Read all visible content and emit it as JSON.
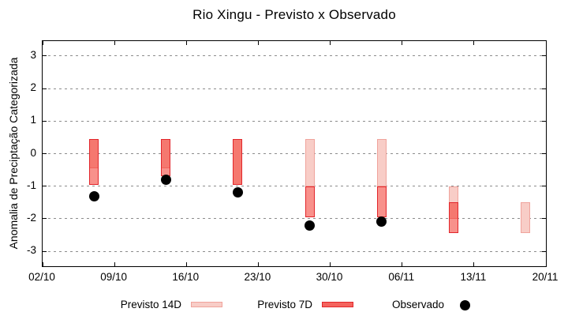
{
  "chart_data": {
    "type": "bar",
    "title": "Rio Xingu - Previsto x Observado",
    "ylabel": "Anomalia de Preciptação Categorizada",
    "x_axis": {
      "tick_labels": [
        "02/10",
        "09/10",
        "16/10",
        "23/10",
        "30/10",
        "06/11",
        "13/11",
        "20/11"
      ],
      "tick_days": [
        0,
        7,
        14,
        21,
        28,
        35,
        42,
        49
      ],
      "range_days": [
        0,
        49
      ]
    },
    "y_axis": {
      "ticks": [
        3,
        2,
        1,
        0,
        -1,
        -2,
        -3
      ],
      "range": [
        -3.46,
        3.46
      ],
      "grid": "dashed-horizontal"
    },
    "series": [
      {
        "name": "Previsto 14D",
        "kind": "interval-bar",
        "fill": "#f8cdc7",
        "border": "#f0a39c",
        "bars": [
          {
            "day": 5,
            "from": 0.45,
            "to": -0.45
          },
          {
            "day": 12,
            "from": 0.45,
            "to": -0.45
          },
          {
            "day": 19,
            "from": 0.45,
            "to": -0.95
          },
          {
            "day": 26,
            "from": 0.45,
            "to": -1.0
          },
          {
            "day": 33,
            "from": 0.45,
            "to": -1.0
          },
          {
            "day": 40,
            "from": -1.0,
            "to": -2.0
          },
          {
            "day": 47,
            "from": -1.5,
            "to": -2.45
          }
        ]
      },
      {
        "name": "Previsto 7D",
        "kind": "interval-bar",
        "fill": "rgba(241,35,23,0.5)",
        "border": "#e2262b",
        "bars": [
          {
            "day": 5,
            "from": 0.45,
            "to": -0.95
          },
          {
            "day": 12,
            "from": 0.45,
            "to": -0.7
          },
          {
            "day": 19,
            "from": 0.45,
            "to": -0.95
          },
          {
            "day": 26,
            "from": -1.0,
            "to": -1.95
          },
          {
            "day": 33,
            "from": -1.0,
            "to": -1.95
          },
          {
            "day": 40,
            "from": -1.5,
            "to": -2.45
          }
        ]
      },
      {
        "name": "Observado",
        "kind": "point",
        "color": "#000000",
        "points": [
          {
            "day": 5,
            "value": -1.3
          },
          {
            "day": 12,
            "value": -0.8
          },
          {
            "day": 19,
            "value": -1.2
          },
          {
            "day": 26,
            "value": -2.2
          },
          {
            "day": 33,
            "value": -2.1
          }
        ]
      }
    ],
    "legend": [
      {
        "label": "Previsto 14D",
        "swatch_fill": "#f8cdc7",
        "swatch_border": "#f0a39c"
      },
      {
        "label": "Previsto 7D",
        "swatch_fill": "#f4635d",
        "swatch_border": "#e2262b"
      },
      {
        "label": "Observado",
        "marker_color": "#000000"
      }
    ],
    "colors": {
      "axis": "#000000",
      "grid": "#8c8c8c",
      "background": "#ffffff"
    }
  }
}
